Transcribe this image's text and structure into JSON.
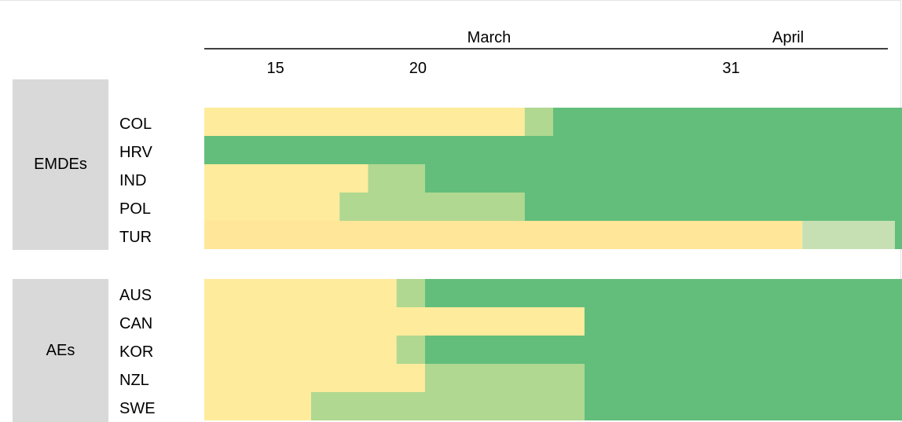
{
  "chart_data": {
    "type": "heatmap",
    "months": [
      {
        "label": "March",
        "day": 22.5
      },
      {
        "label": "April",
        "day": 33
      }
    ],
    "day_ticks": [
      15,
      20,
      31
    ],
    "x_range": [
      12.5,
      37
    ],
    "colors": {
      "stage1": "#ffeb9c",
      "stage1b": "#ffe699",
      "stage2": "#b0d890",
      "stage2b": "#c6e0b4",
      "stage3": "#63be7b"
    },
    "groups": [
      {
        "name": "EMDEs",
        "rows": [
          {
            "label": "COL",
            "segments": [
              {
                "start": 12.5,
                "end": 23.75,
                "color": "stage1"
              },
              {
                "start": 23.75,
                "end": 24.75,
                "color": "stage2"
              },
              {
                "start": 24.75,
                "end": 37,
                "color": "stage3"
              }
            ]
          },
          {
            "label": "HRV",
            "segments": [
              {
                "start": 12.5,
                "end": 37,
                "color": "stage3"
              }
            ]
          },
          {
            "label": "IND",
            "segments": [
              {
                "start": 12.5,
                "end": 18.25,
                "color": "stage1"
              },
              {
                "start": 18.25,
                "end": 20.25,
                "color": "stage2"
              },
              {
                "start": 20.25,
                "end": 37,
                "color": "stage3"
              }
            ]
          },
          {
            "label": "POL",
            "segments": [
              {
                "start": 12.5,
                "end": 17.25,
                "color": "stage1"
              },
              {
                "start": 17.25,
                "end": 23.75,
                "color": "stage2"
              },
              {
                "start": 23.75,
                "end": 37,
                "color": "stage3"
              }
            ]
          },
          {
            "label": "TUR",
            "segments": [
              {
                "start": 12.5,
                "end": 33.5,
                "color": "stage1b"
              },
              {
                "start": 33.5,
                "end": 36.75,
                "color": "stage2b"
              },
              {
                "start": 36.75,
                "end": 37,
                "color": "stage3"
              }
            ]
          }
        ]
      },
      {
        "name": "AEs",
        "rows": [
          {
            "label": "AUS",
            "segments": [
              {
                "start": 12.5,
                "end": 19.25,
                "color": "stage1"
              },
              {
                "start": 19.25,
                "end": 20.25,
                "color": "stage2"
              },
              {
                "start": 20.25,
                "end": 37,
                "color": "stage3"
              }
            ]
          },
          {
            "label": "CAN",
            "segments": [
              {
                "start": 12.5,
                "end": 25.85,
                "color": "stage1"
              },
              {
                "start": 25.85,
                "end": 37,
                "color": "stage3"
              }
            ]
          },
          {
            "label": "KOR",
            "segments": [
              {
                "start": 12.5,
                "end": 19.25,
                "color": "stage1"
              },
              {
                "start": 19.25,
                "end": 20.25,
                "color": "stage2"
              },
              {
                "start": 20.25,
                "end": 37,
                "color": "stage3"
              }
            ]
          },
          {
            "label": "NZL",
            "segments": [
              {
                "start": 12.5,
                "end": 20.25,
                "color": "stage1"
              },
              {
                "start": 20.25,
                "end": 25.85,
                "color": "stage2"
              },
              {
                "start": 25.85,
                "end": 37,
                "color": "stage3"
              }
            ]
          },
          {
            "label": "SWE",
            "segments": [
              {
                "start": 12.5,
                "end": 16.25,
                "color": "stage1"
              },
              {
                "start": 16.25,
                "end": 25.85,
                "color": "stage2"
              },
              {
                "start": 25.85,
                "end": 37,
                "color": "stage3"
              }
            ]
          }
        ]
      }
    ]
  }
}
